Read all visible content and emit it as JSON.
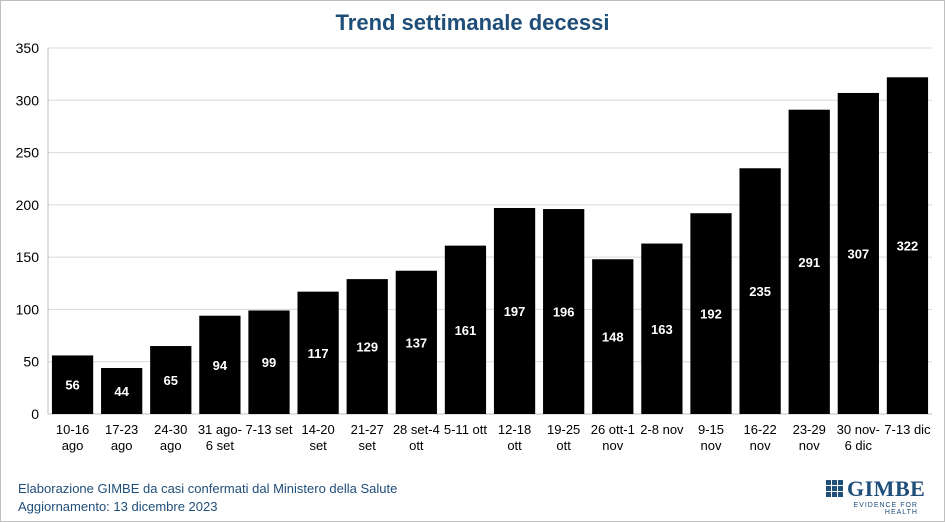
{
  "chart_data": {
    "type": "bar",
    "title": "Trend settimanale decessi",
    "xlabel": "",
    "ylabel": "",
    "categories": [
      [
        "10-16",
        "ago"
      ],
      [
        "17-23",
        "ago"
      ],
      [
        "24-30",
        "ago"
      ],
      [
        "31 ago-",
        "6 set"
      ],
      [
        "7-13 set"
      ],
      [
        "14-20",
        "set"
      ],
      [
        "21-27",
        "set"
      ],
      [
        "28 set-4",
        "ott"
      ],
      [
        "5-11 ott"
      ],
      [
        "12-18",
        "ott"
      ],
      [
        "19-25",
        "ott"
      ],
      [
        "26 ott-1",
        "nov"
      ],
      [
        "2-8 nov"
      ],
      [
        "9-15",
        "nov"
      ],
      [
        "16-22",
        "nov"
      ],
      [
        "23-29",
        "nov"
      ],
      [
        "30 nov-",
        "6 dic"
      ],
      [
        "7-13 dic"
      ]
    ],
    "values": [
      56,
      44,
      65,
      94,
      99,
      117,
      129,
      137,
      161,
      197,
      196,
      148,
      163,
      192,
      235,
      291,
      307,
      322
    ],
    "ylim": [
      0,
      350
    ],
    "yticks": [
      0,
      50,
      100,
      150,
      200,
      250,
      300,
      350
    ],
    "grid": true,
    "legend": "none",
    "bar_color": "#000000",
    "label_color": "#ffffff",
    "title_color": "#1f4e79"
  },
  "footer": {
    "source": "Elaborazione GIMBE da casi confermati dal Ministero della Salute",
    "updated": "Aggiornamento: 13 dicembre 2023"
  },
  "logo": {
    "name": "GIMBE",
    "tagline": "EVIDENCE FOR HEALTH",
    "icon": "grid-logo-icon"
  }
}
